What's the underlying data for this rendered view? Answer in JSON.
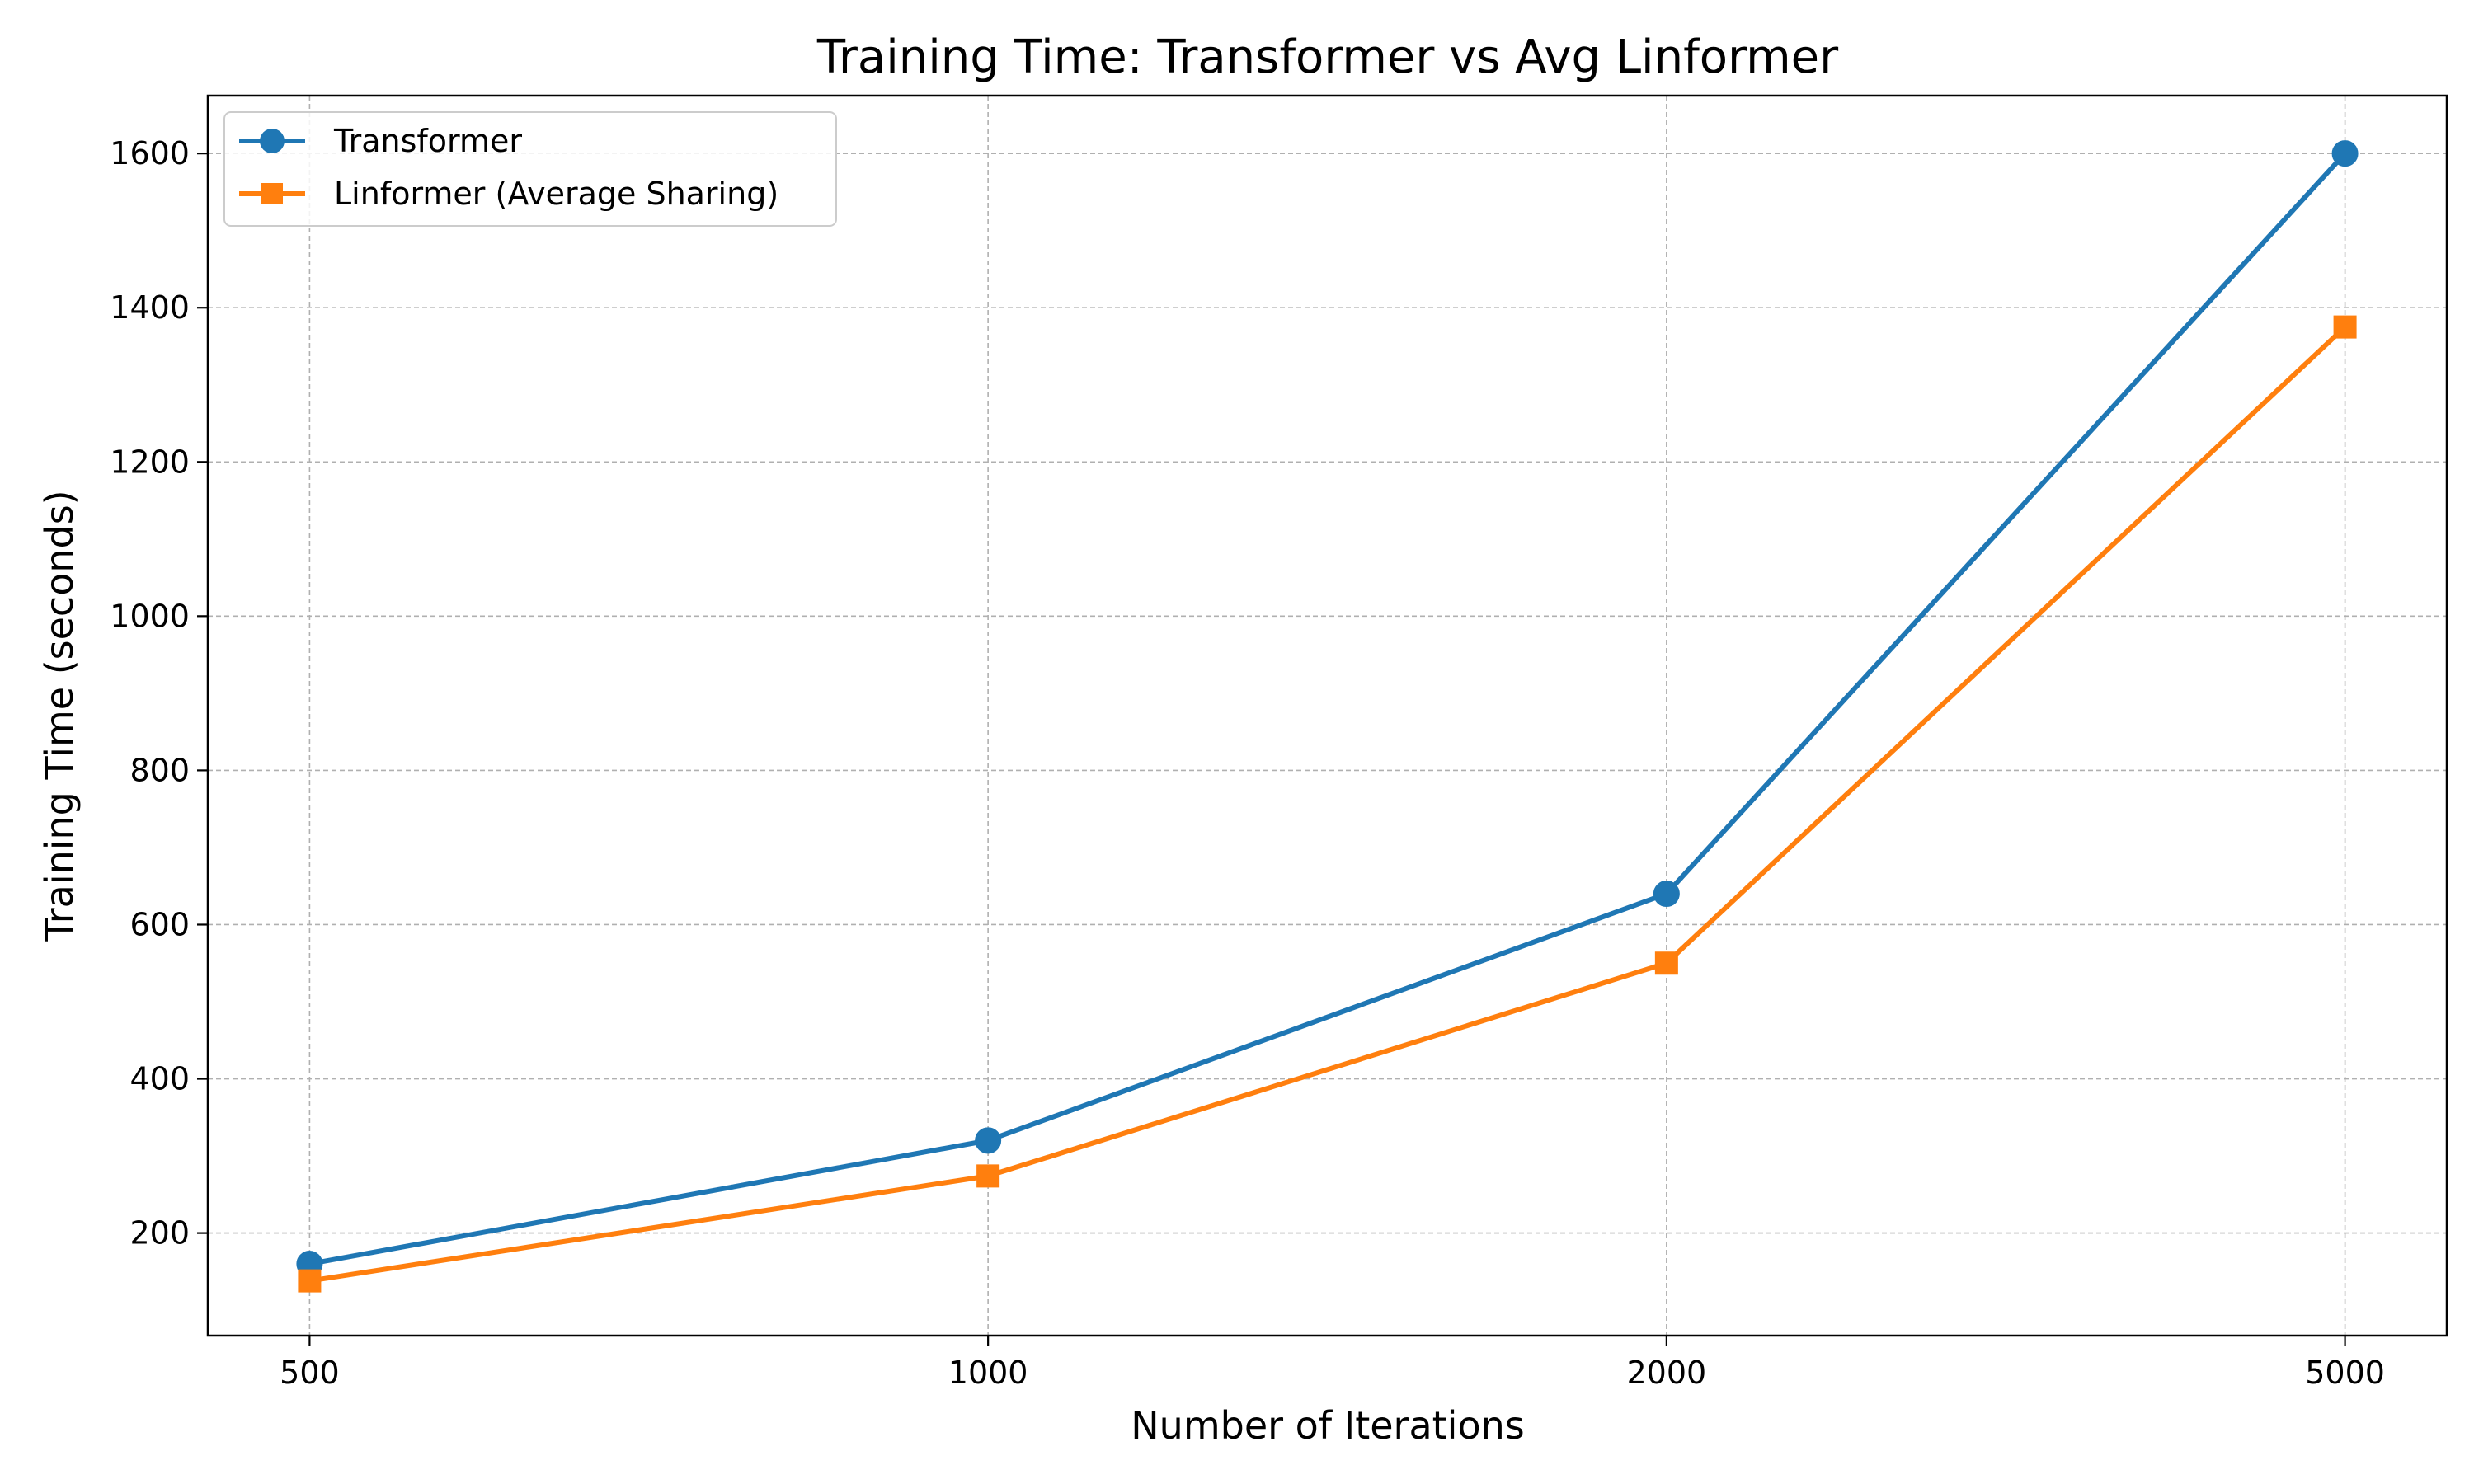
{
  "chart_data": {
    "type": "line",
    "title": "Training Time: Transformer vs Avg Linformer",
    "xlabel": "Number of Iterations",
    "ylabel": "Training Time (seconds)",
    "categories": [
      "500",
      "1000",
      "2000",
      "5000"
    ],
    "series": [
      {
        "name": "Transformer",
        "values": [
          160,
          320,
          640,
          1600
        ],
        "color": "#1f77b4",
        "marker": "circle"
      },
      {
        "name": "Linformer (Average Sharing)",
        "values": [
          138,
          274,
          550,
          1375
        ],
        "color": "#ff7f0e",
        "marker": "square"
      }
    ],
    "ylim": [
      67,
      1675
    ],
    "yticks": [
      200,
      400,
      600,
      800,
      1000,
      1200,
      1400,
      1600
    ],
    "grid": true,
    "legend_position": "upper-left"
  }
}
